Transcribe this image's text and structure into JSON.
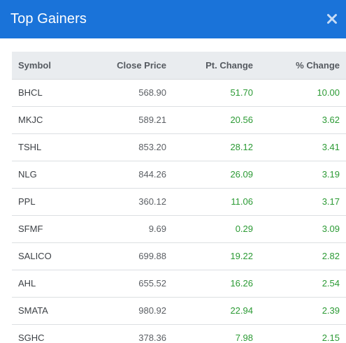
{
  "modal": {
    "title": "Top Gainers",
    "close_icon": "close-icon",
    "header_color": "#1a73d9",
    "positive_color": "#2b9a34"
  },
  "table": {
    "columns": [
      "Symbol",
      "Close Price",
      "Pt. Change",
      "% Change"
    ],
    "rows": [
      {
        "symbol": "BHCL",
        "close": "568.90",
        "pt": "51.70",
        "pct": "10.00"
      },
      {
        "symbol": "MKJC",
        "close": "589.21",
        "pt": "20.56",
        "pct": "3.62"
      },
      {
        "symbol": "TSHL",
        "close": "853.20",
        "pt": "28.12",
        "pct": "3.41"
      },
      {
        "symbol": "NLG",
        "close": "844.26",
        "pt": "26.09",
        "pct": "3.19"
      },
      {
        "symbol": "PPL",
        "close": "360.12",
        "pt": "11.06",
        "pct": "3.17"
      },
      {
        "symbol": "SFMF",
        "close": "9.69",
        "pt": "0.29",
        "pct": "3.09"
      },
      {
        "symbol": "SALICO",
        "close": "699.88",
        "pt": "19.22",
        "pct": "2.82"
      },
      {
        "symbol": "AHL",
        "close": "655.52",
        "pt": "16.26",
        "pct": "2.54"
      },
      {
        "symbol": "SMATA",
        "close": "980.92",
        "pt": "22.94",
        "pct": "2.39"
      },
      {
        "symbol": "SGHC",
        "close": "378.36",
        "pt": "7.98",
        "pct": "2.15"
      }
    ]
  }
}
